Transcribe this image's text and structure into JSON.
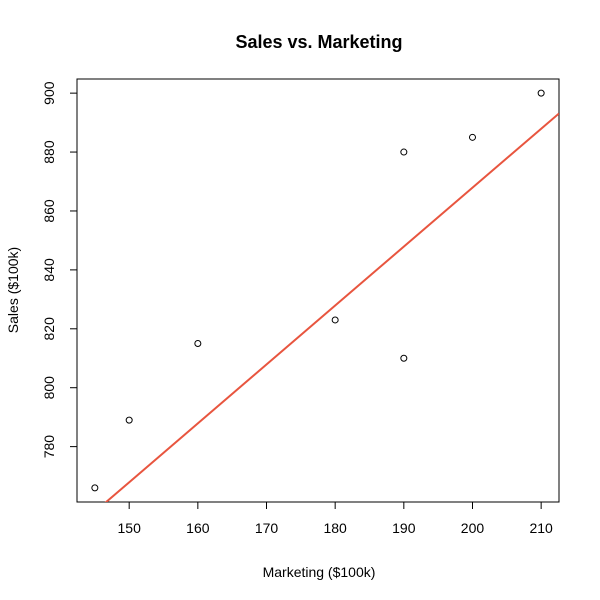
{
  "chart_data": {
    "type": "scatter",
    "title": "Sales vs. Marketing",
    "xlabel": "Marketing ($100k)",
    "ylabel": "Sales ($100k)",
    "xlim": [
      142.4,
      212.6
    ],
    "ylim": [
      761.2,
      904.8
    ],
    "x_ticks": [
      150,
      160,
      170,
      180,
      190,
      200,
      210
    ],
    "y_ticks": [
      780,
      800,
      820,
      840,
      860,
      880,
      900
    ],
    "grid": false,
    "legend": "none",
    "points": [
      {
        "x": 145,
        "y": 766
      },
      {
        "x": 150,
        "y": 789
      },
      {
        "x": 160,
        "y": 815
      },
      {
        "x": 180,
        "y": 823
      },
      {
        "x": 190,
        "y": 880
      },
      {
        "x": 190,
        "y": 810
      },
      {
        "x": 200,
        "y": 885
      },
      {
        "x": 210,
        "y": 900
      }
    ],
    "fit_line": {
      "intercept": 467.9,
      "slope": 2.0,
      "color": "#E8553F"
    },
    "point_color": "#000000"
  }
}
